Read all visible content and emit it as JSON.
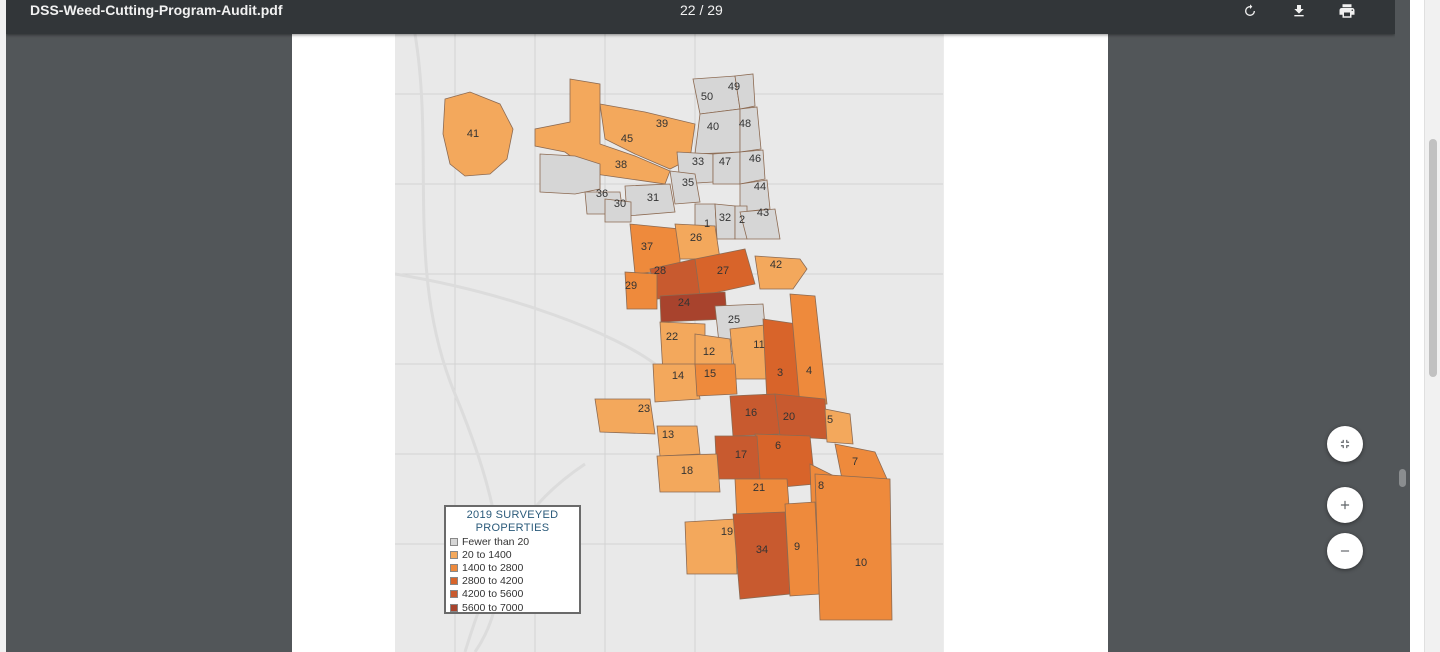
{
  "toolbar": {
    "title": "DSS-Weed-Cutting-Program-Audit.pdf",
    "page_counter": "22 / 29",
    "rotate_icon": "rotate-icon",
    "download_icon": "download-icon",
    "print_icon": "print-icon"
  },
  "map": {
    "wards": [
      {
        "n": "41",
        "color": "#f3a85c"
      },
      {
        "n": "39",
        "color": "#f3a85c"
      },
      {
        "n": "45",
        "color": "#f3a85c"
      },
      {
        "n": "50",
        "color": "#d6d6d6"
      },
      {
        "n": "49",
        "color": "#d6d6d6"
      },
      {
        "n": "40",
        "color": "#d6d6d6"
      },
      {
        "n": "48",
        "color": "#d6d6d6"
      },
      {
        "n": "38",
        "color": "#d6d6d6"
      },
      {
        "n": "33",
        "color": "#d6d6d6"
      },
      {
        "n": "47",
        "color": "#d6d6d6"
      },
      {
        "n": "46",
        "color": "#d6d6d6"
      },
      {
        "n": "35",
        "color": "#d6d6d6"
      },
      {
        "n": "44",
        "color": "#d6d6d6"
      },
      {
        "n": "36",
        "color": "#d6d6d6"
      },
      {
        "n": "31",
        "color": "#d6d6d6"
      },
      {
        "n": "30",
        "color": "#d6d6d6"
      },
      {
        "n": "1",
        "color": "#d6d6d6"
      },
      {
        "n": "32",
        "color": "#d6d6d6"
      },
      {
        "n": "2",
        "color": "#d6d6d6"
      },
      {
        "n": "43",
        "color": "#d6d6d6"
      },
      {
        "n": "37",
        "color": "#ee8a3c"
      },
      {
        "n": "26",
        "color": "#f3a85c"
      },
      {
        "n": "28",
        "color": "#c85a2f"
      },
      {
        "n": "27",
        "color": "#d8642a"
      },
      {
        "n": "42",
        "color": "#f3a85c"
      },
      {
        "n": "29",
        "color": "#ee8a3c"
      },
      {
        "n": "24",
        "color": "#a8432d"
      },
      {
        "n": "25",
        "color": "#d6d6d6"
      },
      {
        "n": "22",
        "color": "#f3a85c"
      },
      {
        "n": "12",
        "color": "#f3a85c"
      },
      {
        "n": "11",
        "color": "#f3a85c"
      },
      {
        "n": "14",
        "color": "#f3a85c"
      },
      {
        "n": "15",
        "color": "#ee8a3c"
      },
      {
        "n": "3",
        "color": "#d8642a"
      },
      {
        "n": "4",
        "color": "#ee8a3c"
      },
      {
        "n": "23",
        "color": "#f3a85c"
      },
      {
        "n": "16",
        "color": "#c85a2f"
      },
      {
        "n": "20",
        "color": "#c85a2f"
      },
      {
        "n": "5",
        "color": "#f3a85c"
      },
      {
        "n": "13",
        "color": "#f3a85c"
      },
      {
        "n": "6",
        "color": "#d8642a"
      },
      {
        "n": "17",
        "color": "#c85a2f"
      },
      {
        "n": "7",
        "color": "#ee8a3c"
      },
      {
        "n": "18",
        "color": "#f3a85c"
      },
      {
        "n": "21",
        "color": "#ee8a3c"
      },
      {
        "n": "8",
        "color": "#ee8a3c"
      },
      {
        "n": "19",
        "color": "#f3a85c"
      },
      {
        "n": "34",
        "color": "#c85a2f"
      },
      {
        "n": "9",
        "color": "#ee8a3c"
      },
      {
        "n": "10",
        "color": "#ee8a3c"
      }
    ]
  },
  "legend": {
    "title_line1": "2019 SURVEYED",
    "title_line2": "PROPERTIES",
    "items": [
      {
        "label": "Fewer than 20",
        "color": "#d6d6d6"
      },
      {
        "label": "20 to 1400",
        "color": "#f3a85c"
      },
      {
        "label": "1400 to 2800",
        "color": "#ee8a3c"
      },
      {
        "label": "2800 to 4200",
        "color": "#d8642a"
      },
      {
        "label": "4200 to 5600",
        "color": "#c85a2f"
      },
      {
        "label": "5600 to 7000",
        "color": "#a8432d"
      }
    ]
  },
  "controls": {
    "fit_icon": "fit-to-page-icon",
    "zoom_in_icon": "zoom-in-icon",
    "zoom_out_icon": "zoom-out-icon"
  }
}
